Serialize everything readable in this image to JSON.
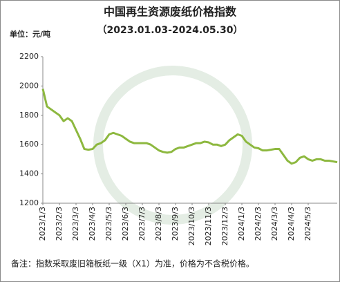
{
  "chart_data": {
    "type": "line",
    "title": "中国再生资源废纸价格指数",
    "subtitle": "（2023.01.03-2024.05.30）",
    "y_unit": "单位：元/吨",
    "note": "备注：指数采取废旧箱板纸一级（X1）为准，价格为不含税价格。",
    "x": [
      "2023/1/3",
      null,
      null,
      null,
      "2023/2/3",
      null,
      null,
      null,
      "2023/3/3",
      null,
      null,
      null,
      "2023/4/3",
      null,
      null,
      null,
      "2023/5/3",
      null,
      null,
      null,
      "2023/6/3",
      null,
      null,
      null,
      "2023/7/3",
      null,
      null,
      null,
      "2023/8/3",
      null,
      null,
      null,
      "2023/9/3",
      null,
      null,
      null,
      "2023/10/3",
      null,
      null,
      null,
      "2023/11/3",
      null,
      null,
      null,
      "2023/12/3",
      null,
      null,
      null,
      "2024/1/3",
      null,
      null,
      null,
      "2024/2/3",
      null,
      null,
      null,
      "2024/3/3",
      null,
      null,
      null,
      "2024/4/3",
      null,
      null,
      null,
      "2024/5/3",
      null,
      null,
      null,
      null,
      null,
      null,
      null
    ],
    "series": [
      {
        "name": "废纸价格指数",
        "color": "#8db83f",
        "values": [
          1980,
          1860,
          1840,
          1820,
          1800,
          1760,
          1780,
          1760,
          1700,
          1640,
          1570,
          1565,
          1570,
          1600,
          1610,
          1630,
          1670,
          1680,
          1670,
          1660,
          1640,
          1620,
          1610,
          1610,
          1610,
          1610,
          1600,
          1580,
          1560,
          1550,
          1545,
          1550,
          1570,
          1580,
          1580,
          1590,
          1600,
          1610,
          1610,
          1620,
          1615,
          1600,
          1600,
          1590,
          1600,
          1630,
          1650,
          1670,
          1660,
          1620,
          1600,
          1580,
          1575,
          1560,
          1560,
          1565,
          1570,
          1570,
          1530,
          1490,
          1470,
          1480,
          1510,
          1520,
          1500,
          1490,
          1500,
          1500,
          1490,
          1490,
          1485,
          1480
        ]
      }
    ],
    "ylim": [
      1200,
      2200
    ],
    "yticks": [
      1200,
      1400,
      1600,
      1800,
      2000,
      2200
    ]
  }
}
